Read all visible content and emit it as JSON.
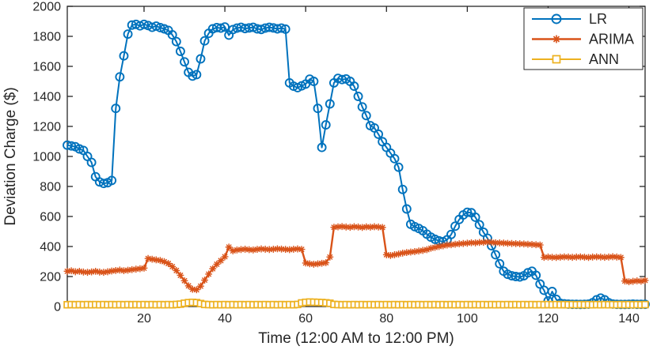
{
  "chart_data": {
    "type": "line",
    "title": "",
    "xlabel": "Time (12:00 AM to 12:00 PM)",
    "ylabel": "Deviation Charge ($)",
    "xlim": [
      1,
      144
    ],
    "ylim": [
      0,
      2000
    ],
    "x_start": 1,
    "x_step": 1,
    "xticks": [
      20,
      40,
      60,
      80,
      100,
      120,
      140
    ],
    "yticks": [
      0,
      200,
      400,
      600,
      800,
      1000,
      1200,
      1400,
      1600,
      1800,
      2000
    ],
    "grid": false,
    "legend_position": "top-right",
    "axis_color": "#262626",
    "background": "#ffffff",
    "series": [
      {
        "name": "LR",
        "color": "#0072BD",
        "marker": "circle",
        "values": [
          1075,
          1070,
          1065,
          1050,
          1040,
          1000,
          960,
          865,
          830,
          820,
          825,
          840,
          1320,
          1530,
          1670,
          1815,
          1875,
          1880,
          1870,
          1880,
          1872,
          1860,
          1868,
          1858,
          1850,
          1840,
          1810,
          1765,
          1700,
          1630,
          1560,
          1535,
          1545,
          1650,
          1770,
          1820,
          1850,
          1858,
          1855,
          1862,
          1808,
          1845,
          1855,
          1860,
          1852,
          1856,
          1860,
          1850,
          1846,
          1855,
          1860,
          1856,
          1850,
          1855,
          1848,
          1490,
          1468,
          1458,
          1470,
          1482,
          1515,
          1500,
          1320,
          1060,
          1210,
          1350,
          1490,
          1520,
          1512,
          1516,
          1500,
          1468,
          1400,
          1330,
          1272,
          1205,
          1190,
          1148,
          1098,
          1060,
          1022,
          985,
          928,
          780,
          650,
          548,
          532,
          520,
          505,
          482,
          462,
          448,
          438,
          432,
          445,
          480,
          535,
          580,
          610,
          628,
          625,
          595,
          545,
          495,
          455,
          405,
          345,
          285,
          235,
          215,
          205,
          200,
          197,
          205,
          225,
          235,
          208,
          150,
          108,
          38,
          100,
          48,
          22,
          18,
          16,
          15,
          15,
          14,
          15,
          16,
          25,
          45,
          56,
          45,
          25,
          17,
          15,
          14,
          14,
          15,
          16,
          15,
          15,
          15
        ]
      },
      {
        "name": "ARIMA",
        "color": "#D95319",
        "marker": "asterisk",
        "values": [
          235,
          238,
          232,
          235,
          230,
          228,
          231,
          235,
          230,
          228,
          232,
          237,
          240,
          243,
          239,
          242,
          246,
          249,
          252,
          256,
          320,
          315,
          311,
          307,
          299,
          287,
          266,
          240,
          208,
          172,
          138,
          115,
          112,
          136,
          176,
          216,
          252,
          282,
          306,
          332,
          396,
          371,
          377,
          380,
          382,
          379,
          377,
          381,
          384,
          382,
          380,
          382,
          385,
          383,
          381,
          379,
          382,
          384,
          381,
          290,
          285,
          282,
          285,
          288,
          292,
          330,
          528,
          531,
          533,
          530,
          528,
          532,
          530,
          527,
          531,
          529,
          532,
          530,
          527,
          345,
          340,
          345,
          350,
          356,
          360,
          363,
          366,
          370,
          374,
          379,
          388,
          394,
          400,
          405,
          410,
          412,
          415,
          418,
          420,
          422,
          425,
          424,
          427,
          428,
          430,
          428,
          425,
          424,
          423,
          421,
          420,
          419,
          418,
          417,
          415,
          414,
          412,
          410,
          328,
          330,
          328,
          327,
          329,
          331,
          330,
          328,
          330,
          331,
          329,
          327,
          330,
          331,
          330,
          328,
          330,
          332,
          330,
          327,
          170,
          165,
          168,
          171,
          169,
          174
        ]
      },
      {
        "name": "ANN",
        "color": "#EDB120",
        "marker": "square",
        "values": [
          12,
          13,
          12,
          13,
          12,
          13,
          12,
          13,
          12,
          13,
          12,
          13,
          12,
          13,
          12,
          13,
          12,
          13,
          12,
          13,
          12,
          13,
          12,
          13,
          12,
          13,
          12,
          14,
          16,
          22,
          26,
          28,
          26,
          20,
          14,
          13,
          12,
          13,
          12,
          13,
          12,
          13,
          12,
          13,
          12,
          13,
          12,
          13,
          12,
          13,
          12,
          13,
          12,
          13,
          12,
          13,
          12,
          14,
          24,
          28,
          30,
          29,
          28,
          27,
          25,
          22,
          14,
          13,
          12,
          13,
          12,
          13,
          12,
          13,
          12,
          13,
          12,
          13,
          12,
          13,
          12,
          13,
          12,
          13,
          12,
          13,
          12,
          13,
          12,
          13,
          12,
          13,
          12,
          13,
          12,
          13,
          12,
          13,
          12,
          13,
          12,
          13,
          12,
          13,
          12,
          13,
          12,
          13,
          12,
          13,
          12,
          13,
          12,
          13,
          12,
          13,
          12,
          13,
          12,
          13,
          12,
          13,
          12,
          13,
          12,
          13,
          12,
          13,
          12,
          13,
          12,
          13,
          12,
          13,
          12,
          13,
          12,
          13,
          12,
          13,
          12,
          13,
          12,
          13
        ]
      }
    ]
  }
}
